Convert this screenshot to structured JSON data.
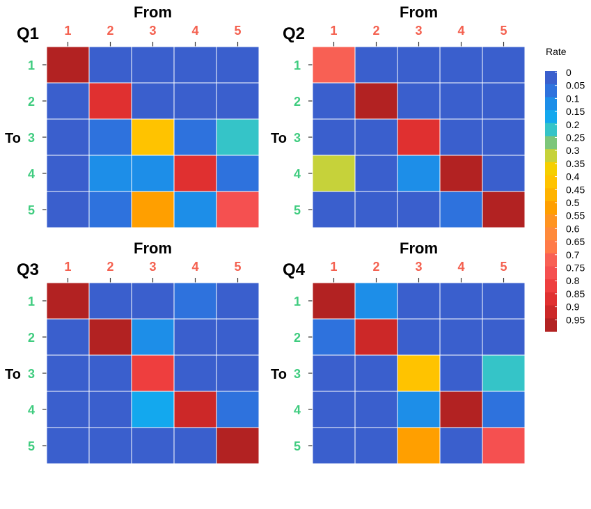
{
  "chart_data": {
    "type": "heatmap",
    "x_axis_title": "From",
    "y_axis_title": "To",
    "x_categories": [
      "1",
      "2",
      "3",
      "4",
      "5"
    ],
    "y_categories": [
      "1",
      "2",
      "3",
      "4",
      "5"
    ],
    "x_label_color": "#f4604f",
    "y_label_color": "#3fcc7f",
    "legend": {
      "title": "Rate",
      "position": "right",
      "ticks": [
        "0",
        "0.05",
        "0.1",
        "0.15",
        "0.2",
        "0.25",
        "0.3",
        "0.35",
        "0.4",
        "0.45",
        "0.5",
        "0.55",
        "0.6",
        "0.65",
        "0.7",
        "0.75",
        "0.8",
        "0.85",
        "0.9",
        "0.95"
      ],
      "colors": [
        "#3a5fcd",
        "#2e72dd",
        "#1d8ee8",
        "#13a8ee",
        "#35c4c8",
        "#7cc67a",
        "#c6d23a",
        "#f5cf00",
        "#ffc300",
        "#ffb300",
        "#ff9f00",
        "#ff9421",
        "#ff8a3b",
        "#ff7a48",
        "#f86054",
        "#f55050",
        "#ee3e3e",
        "#e03030",
        "#cc2828",
        "#b22222"
      ]
    },
    "panels": [
      {
        "title": "Q1",
        "matrix": [
          [
            0.95,
            0.0,
            0.0,
            0.0,
            0.0
          ],
          [
            0.0,
            0.85,
            0.0,
            0.0,
            0.0
          ],
          [
            0.0,
            0.05,
            0.4,
            0.05,
            0.2
          ],
          [
            0.0,
            0.1,
            0.1,
            0.85,
            0.05
          ],
          [
            0.0,
            0.05,
            0.5,
            0.1,
            0.75
          ]
        ]
      },
      {
        "title": "Q2",
        "matrix": [
          [
            0.7,
            0.0,
            0.0,
            0.0,
            0.0
          ],
          [
            0.0,
            0.95,
            0.0,
            0.0,
            0.0
          ],
          [
            0.0,
            0.0,
            0.85,
            0.0,
            0.0
          ],
          [
            0.3,
            0.0,
            0.1,
            0.95,
            0.0
          ],
          [
            0.0,
            0.0,
            0.0,
            0.05,
            0.95
          ]
        ]
      },
      {
        "title": "Q3",
        "matrix": [
          [
            0.95,
            0.0,
            0.0,
            0.05,
            0.0
          ],
          [
            0.0,
            0.95,
            0.1,
            0.0,
            0.0
          ],
          [
            0.0,
            0.0,
            0.8,
            0.0,
            0.0
          ],
          [
            0.0,
            0.0,
            0.15,
            0.9,
            0.05
          ],
          [
            0.0,
            0.0,
            0.0,
            0.0,
            0.95
          ]
        ]
      },
      {
        "title": "Q4",
        "matrix": [
          [
            0.95,
            0.1,
            0.0,
            0.0,
            0.0
          ],
          [
            0.05,
            0.9,
            0.0,
            0.0,
            0.0
          ],
          [
            0.0,
            0.0,
            0.4,
            0.0,
            0.2
          ],
          [
            0.0,
            0.0,
            0.1,
            0.95,
            0.05
          ],
          [
            0.0,
            0.0,
            0.5,
            0.0,
            0.75
          ]
        ]
      }
    ]
  }
}
